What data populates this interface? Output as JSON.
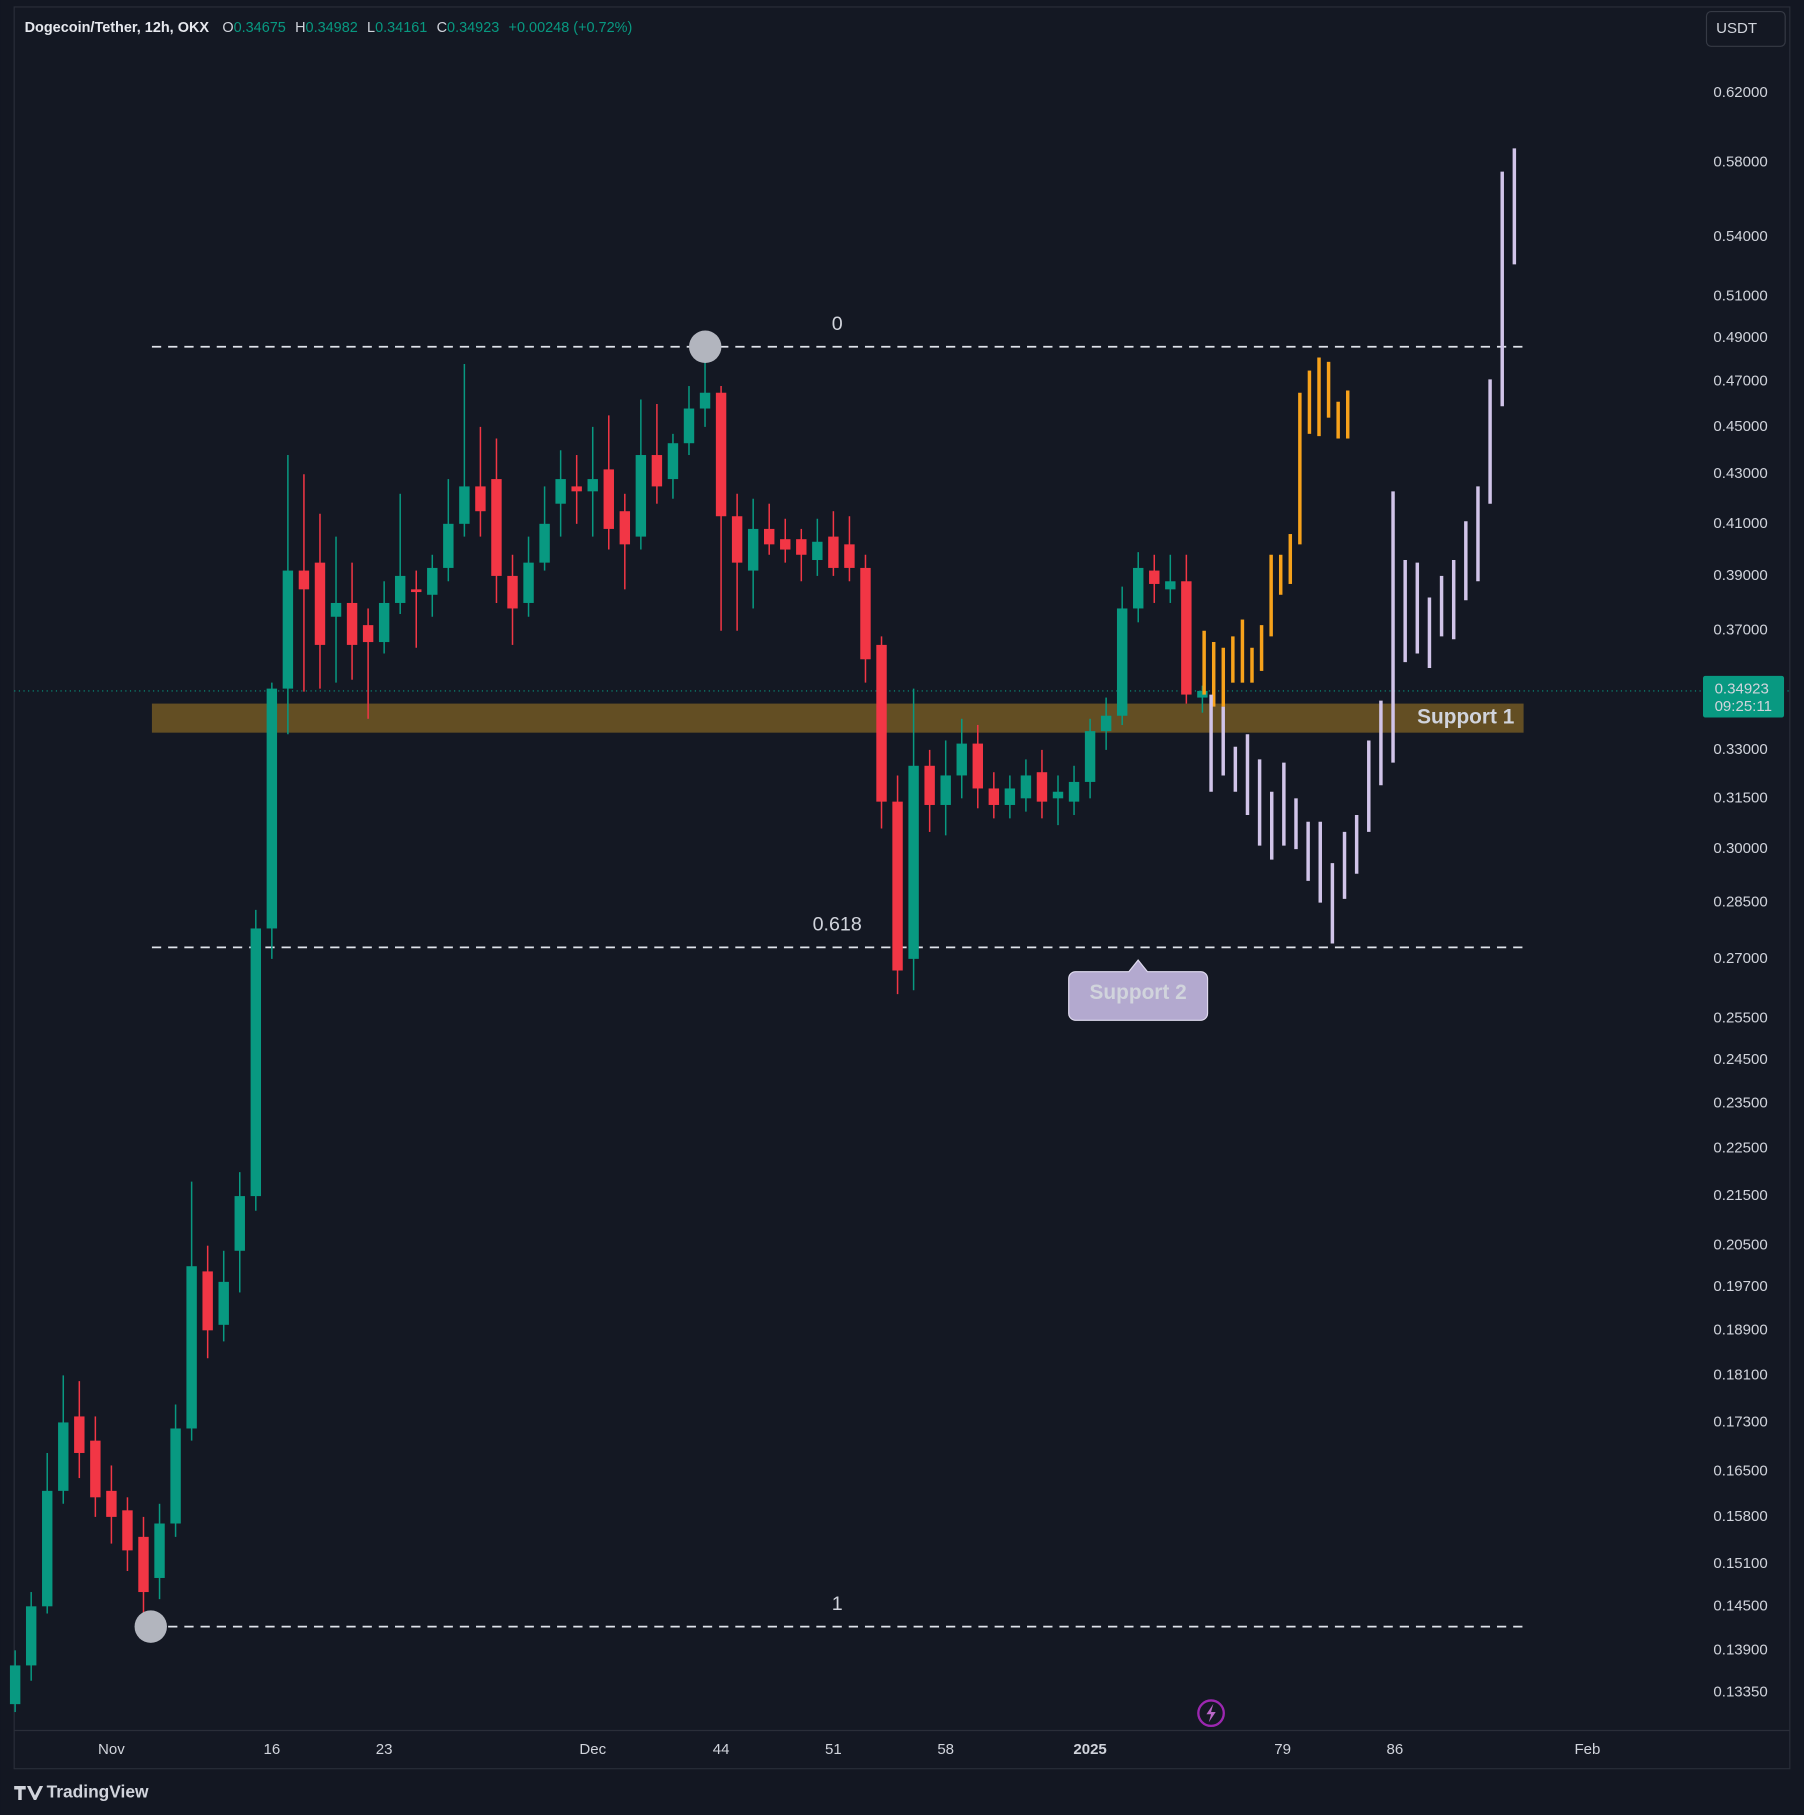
{
  "header": {
    "symbol": "Dogecoin/Tether, 12h, OKX",
    "ohlc": [
      {
        "key": "O",
        "value": 0.34675
      },
      {
        "key": "H",
        "value": 0.34982
      },
      {
        "key": "L",
        "value": 0.34161
      },
      {
        "key": "C",
        "value": 0.34923
      }
    ],
    "change": "+0.00248 (+0.72%)"
  },
  "currency": "USDT",
  "brand": "TradingView",
  "chart_data": {
    "type": "candlestick",
    "open": [
      0.132,
      0.137,
      0.145,
      0.162,
      0.174,
      0.17,
      0.162,
      0.159,
      0.155,
      0.149,
      0.157,
      0.172,
      0.2,
      0.19,
      0.204,
      0.215,
      0.278,
      0.35,
      0.392,
      0.395,
      0.375,
      0.38,
      0.372,
      0.366,
      0.38,
      0.385,
      0.383,
      0.393,
      0.41,
      0.425,
      0.428,
      0.39,
      0.38,
      0.395,
      0.418,
      0.425,
      0.423,
      0.432,
      0.415,
      0.405,
      0.438,
      0.428,
      0.443,
      0.458,
      0.465,
      0.413,
      0.392,
      0.408,
      0.404,
      0.404,
      0.396,
      0.405,
      0.402,
      0.393,
      0.365,
      0.314,
      0.27,
      0.325,
      0.313,
      0.322,
      0.332,
      0.318,
      0.313,
      0.315,
      0.323,
      0.315,
      0.314,
      0.32,
      0.336,
      0.341,
      0.378,
      0.392,
      0.385,
      0.388,
      0.347
    ],
    "high": [
      0.139,
      0.147,
      0.168,
      0.181,
      0.18,
      0.174,
      0.166,
      0.161,
      0.158,
      0.16,
      0.176,
      0.218,
      0.205,
      0.204,
      0.22,
      0.283,
      0.352,
      0.438,
      0.43,
      0.414,
      0.405,
      0.395,
      0.378,
      0.388,
      0.422,
      0.392,
      0.398,
      0.428,
      0.478,
      0.45,
      0.445,
      0.398,
      0.405,
      0.425,
      0.44,
      0.438,
      0.45,
      0.455,
      0.422,
      0.462,
      0.46,
      0.447,
      0.468,
      0.486,
      0.468,
      0.422,
      0.42,
      0.418,
      0.412,
      0.408,
      0.412,
      0.415,
      0.413,
      0.398,
      0.368,
      0.322,
      0.35,
      0.33,
      0.333,
      0.34,
      0.338,
      0.323,
      0.322,
      0.327,
      0.33,
      0.322,
      0.325,
      0.34,
      0.347,
      0.386,
      0.399,
      0.398,
      0.398,
      0.398,
      0.351
    ],
    "low": [
      0.131,
      0.135,
      0.144,
      0.16,
      0.164,
      0.158,
      0.154,
      0.15,
      0.143,
      0.146,
      0.155,
      0.17,
      0.184,
      0.187,
      0.196,
      0.212,
      0.27,
      0.335,
      0.349,
      0.35,
      0.352,
      0.353,
      0.34,
      0.362,
      0.376,
      0.364,
      0.375,
      0.388,
      0.405,
      0.405,
      0.38,
      0.365,
      0.375,
      0.392,
      0.405,
      0.41,
      0.405,
      0.4,
      0.385,
      0.4,
      0.418,
      0.42,
      0.438,
      0.45,
      0.37,
      0.37,
      0.378,
      0.398,
      0.395,
      0.388,
      0.39,
      0.39,
      0.388,
      0.352,
      0.306,
      0.261,
      0.262,
      0.305,
      0.304,
      0.315,
      0.312,
      0.309,
      0.309,
      0.311,
      0.309,
      0.307,
      0.31,
      0.315,
      0.33,
      0.338,
      0.373,
      0.38,
      0.38,
      0.345,
      0.342
    ],
    "close": [
      0.137,
      0.145,
      0.162,
      0.173,
      0.168,
      0.161,
      0.158,
      0.153,
      0.147,
      0.157,
      0.172,
      0.201,
      0.189,
      0.198,
      0.215,
      0.278,
      0.35,
      0.392,
      0.385,
      0.365,
      0.38,
      0.365,
      0.366,
      0.38,
      0.39,
      0.384,
      0.393,
      0.41,
      0.425,
      0.415,
      0.39,
      0.378,
      0.395,
      0.41,
      0.428,
      0.423,
      0.428,
      0.408,
      0.402,
      0.438,
      0.425,
      0.443,
      0.458,
      0.465,
      0.413,
      0.395,
      0.408,
      0.402,
      0.4,
      0.398,
      0.403,
      0.393,
      0.393,
      0.36,
      0.314,
      0.267,
      0.325,
      0.313,
      0.322,
      0.332,
      0.318,
      0.313,
      0.318,
      0.322,
      0.314,
      0.317,
      0.32,
      0.336,
      0.341,
      0.378,
      0.393,
      0.387,
      0.388,
      0.348,
      0.34923
    ],
    "up_color": "#089981",
    "down_color": "#f23645",
    "xlim": [
      -0.06,
      105.13
    ],
    "xticks": [
      {
        "value": 6,
        "label": "Nov"
      },
      16,
      23,
      {
        "value": 36,
        "label": "Dec"
      },
      44,
      51,
      58,
      {
        "value": 67,
        "label": "2025"
      },
      79,
      86,
      {
        "value": 98,
        "label": "Feb"
      }
    ],
    "ylim": [
      0.1287,
      0.672
    ],
    "log_scale": true,
    "grid": false,
    "yticks": [
      {
        "value": 0.62,
        "label": "0.62000"
      },
      {
        "value": 0.58,
        "label": "0.58000"
      },
      {
        "value": 0.54,
        "label": "0.54000"
      },
      {
        "value": 0.51,
        "label": "0.51000"
      },
      {
        "value": 0.49,
        "label": "0.49000"
      },
      {
        "value": 0.47,
        "label": "0.47000"
      },
      {
        "value": 0.45,
        "label": "0.45000"
      },
      {
        "value": 0.43,
        "label": "0.43000"
      },
      {
        "value": 0.41,
        "label": "0.41000"
      },
      {
        "value": 0.39,
        "label": "0.39000"
      },
      {
        "value": 0.37,
        "label": "0.37000"
      },
      {
        "value": 0.33,
        "label": "0.33000"
      },
      {
        "value": 0.315,
        "label": "0.31500"
      },
      {
        "value": 0.3,
        "label": "0.30000"
      },
      {
        "value": 0.285,
        "label": "0.28500"
      },
      {
        "value": 0.27,
        "label": "0.27000"
      },
      {
        "value": 0.255,
        "label": "0.25500"
      },
      {
        "value": 0.245,
        "label": "0.24500"
      },
      {
        "value": 0.235,
        "label": "0.23500"
      },
      {
        "value": 0.225,
        "label": "0.22500"
      },
      {
        "value": 0.215,
        "label": "0.21500"
      },
      {
        "value": 0.205,
        "label": "0.20500"
      },
      {
        "value": 0.197,
        "label": "0.19700"
      },
      {
        "value": 0.189,
        "label": "0.18900"
      },
      {
        "value": 0.181,
        "label": "0.18100"
      },
      {
        "value": 0.173,
        "label": "0.17300"
      },
      {
        "value": 0.165,
        "label": "0.16500"
      },
      {
        "value": 0.158,
        "label": "0.15800"
      },
      {
        "value": 0.151,
        "label": "0.15100"
      },
      {
        "value": 0.145,
        "label": "0.14500"
      },
      {
        "value": 0.139,
        "label": "0.13900"
      },
      {
        "value": 0.1335,
        "label": "0.13350"
      }
    ],
    "last_price": 0.34923,
    "countdown": "09:25:11",
    "fib_levels": [
      {
        "label": "0",
        "value": 0.486
      },
      {
        "label": "0.618",
        "value": 0.273
      },
      {
        "label": "1",
        "value": 0.1422
      }
    ],
    "zones": [
      {
        "label": "Support 1",
        "range": [
          0.3355,
          0.345
        ],
        "color": "#6b5424"
      }
    ],
    "callouts": [
      {
        "label": "Support 2",
        "value": 0.273
      }
    ],
    "projections": [
      {
        "color": "#f7a21b",
        "low": [
          0.348,
          0.344,
          0.344,
          0.352,
          0.352,
          0.352,
          0.356,
          0.368,
          0.383,
          0.387,
          0.402,
          0.447,
          0.446,
          0.454,
          0.445,
          0.445
        ],
        "high": [
          0.37,
          0.366,
          0.364,
          0.368,
          0.374,
          0.364,
          0.372,
          0.398,
          0.398,
          0.406,
          0.465,
          0.475,
          0.481,
          0.479,
          0.461,
          0.466
        ]
      },
      {
        "color": "#d1c4e9",
        "low": [
          0.317,
          0.322,
          0.317,
          0.31,
          0.301,
          0.297,
          0.301,
          0.3,
          0.291,
          0.285,
          0.274,
          0.286,
          0.293,
          0.305,
          0.319,
          0.326,
          0.359,
          0.362,
          0.357,
          0.368,
          0.367,
          0.381,
          0.388,
          0.418,
          0.459,
          0.526
        ],
        "high": [
          0.348,
          0.344,
          0.331,
          0.335,
          0.327,
          0.317,
          0.326,
          0.315,
          0.308,
          0.308,
          0.296,
          0.305,
          0.31,
          0.333,
          0.346,
          0.423,
          0.396,
          0.395,
          0.382,
          0.39,
          0.396,
          0.411,
          0.425,
          0.471,
          0.575,
          0.588
        ]
      }
    ]
  }
}
